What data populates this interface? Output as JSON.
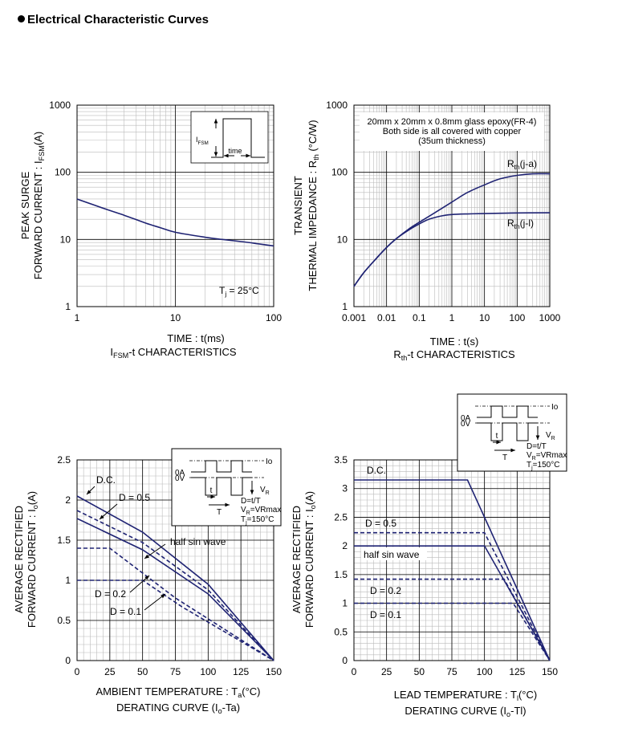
{
  "page": {
    "title": "Electrical Characteristic Curves"
  },
  "colors": {
    "curve": "#1f2373",
    "grid_major": "#000000",
    "grid_minor": "#bbbbbb",
    "inset_border": "#000000"
  },
  "chart_data": [
    {
      "type": "line",
      "xscale": "log",
      "yscale": "log",
      "xlim": [
        1,
        100
      ],
      "ylim": [
        1,
        1000
      ],
      "x_ticks": [
        "1",
        "10",
        "100"
      ],
      "y_ticks": [
        "1",
        "10",
        "100",
        "1000"
      ],
      "xlabel": "TIME : t(ms)",
      "caption": "IFSM-t CHARACTERISTICS",
      "ylabel_lines": [
        "PEAK SURGE",
        "FORWARD CURRENT : IFSM(A)"
      ],
      "series": [
        {
          "x": [
            1,
            2,
            3,
            5,
            7,
            10,
            20,
            30,
            50,
            70,
            100
          ],
          "y": [
            40,
            28,
            23,
            17.5,
            15,
            12.8,
            10.8,
            10,
            9.2,
            8.6,
            8
          ]
        }
      ],
      "annotations": {
        "condition": "Tj = 25°C",
        "inset_labels": [
          "IFSM",
          "time"
        ]
      }
    },
    {
      "type": "line",
      "xscale": "log",
      "yscale": "log",
      "xlim": [
        0.001,
        1000
      ],
      "ylim": [
        1,
        1000
      ],
      "x_ticks": [
        "0.001",
        "0.01",
        "0.1",
        "1",
        "10",
        "100",
        "1000"
      ],
      "y_ticks": [
        "1",
        "10",
        "100",
        "1000"
      ],
      "xlabel": "TIME : t(s)",
      "caption": "Rth-t CHARACTERISTICS",
      "ylabel_lines": [
        "TRANSIENT",
        "THERMAL IMPEDANCE : Rth (°C/W)"
      ],
      "note_lines": [
        "20mm x 20mm x 0.8mm glass epoxy(FR-4)",
        "Both side is all covered with copper",
        "(35um thickness)"
      ],
      "series": [
        {
          "name": "Rth(j-a)",
          "x": [
            0.001,
            0.002,
            0.005,
            0.01,
            0.02,
            0.05,
            0.1,
            0.3,
            1,
            3,
            10,
            30,
            100,
            300,
            1000
          ],
          "y": [
            2,
            3.2,
            5.3,
            7.6,
            10.3,
            14.5,
            18,
            25,
            36,
            50,
            65,
            80,
            90,
            95,
            95
          ]
        },
        {
          "name": "Rth(j-l)",
          "x": [
            0.001,
            0.002,
            0.005,
            0.01,
            0.02,
            0.05,
            0.1,
            0.2,
            0.5,
            1,
            3,
            10,
            100,
            1000
          ],
          "y": [
            2,
            3.2,
            5.3,
            7.6,
            10.3,
            14,
            17,
            20,
            22.5,
            23.5,
            24,
            24.3,
            24.8,
            25
          ]
        }
      ]
    },
    {
      "type": "line",
      "xlim": [
        0,
        150
      ],
      "ylim": [
        0,
        2.5
      ],
      "x_ticks": [
        "0",
        "25",
        "50",
        "75",
        "100",
        "125",
        "150"
      ],
      "y_ticks": [
        "0",
        "0.5",
        "1",
        "1.5",
        "2",
        "2.5"
      ],
      "xlabel": "AMBIENT TEMPERATURE : Ta(°C)",
      "caption": "DERATING CURVE (Io-Ta)",
      "ylabel_lines": [
        "AVERAGE RECTIFIED",
        "FORWARD CURRENT : Io(A)"
      ],
      "series": [
        {
          "name": "D.C.",
          "style": "solid",
          "x": [
            0,
            50,
            100,
            150
          ],
          "y": [
            2.05,
            1.6,
            0.95,
            0
          ]
        },
        {
          "name": "D = 0.5",
          "style": "dashed",
          "x": [
            0,
            50,
            100,
            150
          ],
          "y": [
            1.87,
            1.47,
            0.88,
            0
          ]
        },
        {
          "name": "half sin wave",
          "style": "solid",
          "x": [
            0,
            50,
            100,
            150
          ],
          "y": [
            1.77,
            1.38,
            0.83,
            0
          ]
        },
        {
          "name": "D = 0.2",
          "style": "dashed",
          "x": [
            0,
            25,
            75,
            150
          ],
          "y": [
            1.4,
            1.4,
            0.78,
            0
          ]
        },
        {
          "name": "D = 0.1",
          "style": "dashed",
          "x": [
            0,
            50,
            80,
            150
          ],
          "y": [
            1.0,
            1.0,
            0.67,
            0
          ]
        }
      ],
      "inset": {
        "labels": [
          "0A",
          "0V",
          "Io",
          "VR",
          "t",
          "T",
          "D=t/T",
          "VR=VRmax",
          "Tj=150°C"
        ]
      }
    },
    {
      "type": "line",
      "xlim": [
        0,
        150
      ],
      "ylim": [
        0,
        3.5
      ],
      "x_ticks": [
        "0",
        "25",
        "50",
        "75",
        "100",
        "125",
        "150"
      ],
      "y_ticks": [
        "0",
        "0.5",
        "1",
        "1.5",
        "2",
        "2.5",
        "3",
        "3.5"
      ],
      "xlabel": "LEAD TEMPERATURE : Tl(°C)",
      "caption": "DERATING CURVE (Io-Tl)",
      "ylabel_lines": [
        "AVERAGE RECTIFIED",
        "FORWARD CURRENT : Io(A)"
      ],
      "series": [
        {
          "name": "D.C.",
          "style": "solid",
          "x": [
            0,
            87,
            150
          ],
          "y": [
            3.15,
            3.15,
            0
          ]
        },
        {
          "name": "D = 0.5",
          "style": "dashed",
          "x": [
            0,
            100,
            150
          ],
          "y": [
            2.23,
            2.23,
            0
          ]
        },
        {
          "name": "half sin wave",
          "style": "solid",
          "x": [
            0,
            100,
            150
          ],
          "y": [
            2.0,
            2.0,
            0
          ]
        },
        {
          "name": "D = 0.2",
          "style": "dashed",
          "x": [
            0,
            115,
            150
          ],
          "y": [
            1.42,
            1.42,
            0
          ]
        },
        {
          "name": "D = 0.1",
          "style": "dashed",
          "x": [
            0,
            122,
            150
          ],
          "y": [
            1.0,
            1.0,
            0
          ]
        }
      ],
      "inset": {
        "labels": [
          "0A",
          "0V",
          "Io",
          "VR",
          "t",
          "T",
          "D=t/T",
          "VR=VRmax",
          "Tj=150°C"
        ]
      }
    }
  ]
}
